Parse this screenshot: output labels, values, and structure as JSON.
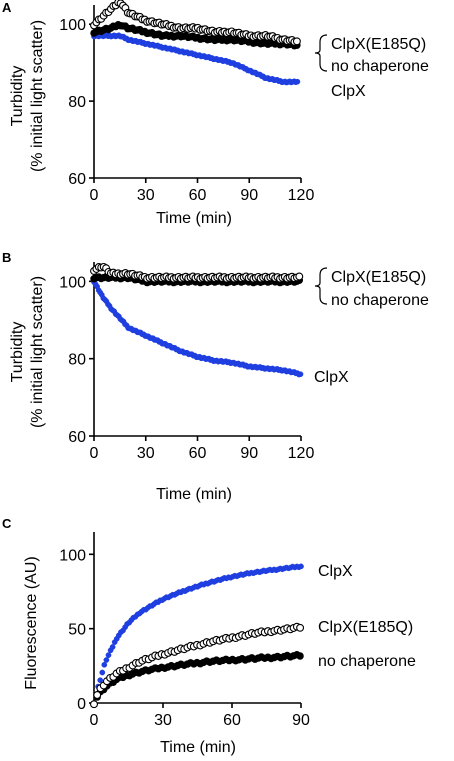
{
  "colors": {
    "clpx": "#1f3fe0",
    "mutant_edge": "#000000",
    "mutant_fill": "#ffffff",
    "nochap": "#000000",
    "axis": "#000000"
  },
  "chart_data": [
    {
      "panel": "A",
      "type": "scatter",
      "xlabel": "Time (min)",
      "ylabel": [
        "Turbidity",
        "(% initial light scatter)"
      ],
      "xlim": [
        0,
        120
      ],
      "ylim": [
        60,
        105
      ],
      "xticks": [
        0,
        30,
        60,
        90,
        120
      ],
      "yticks": [
        60,
        80,
        100
      ],
      "x": [
        0,
        10,
        15,
        20,
        30,
        40,
        50,
        60,
        70,
        80,
        90,
        100,
        110,
        118
      ],
      "series": [
        {
          "name": "ClpX(E185Q)",
          "style": "open",
          "values": [
            100,
            104,
            106,
            103,
            101,
            100,
            99,
            99,
            98,
            98,
            97,
            97,
            96,
            95.5
          ]
        },
        {
          "name": "no chaperone",
          "style": "filled",
          "values": [
            98,
            99,
            100,
            99,
            98,
            97,
            97,
            96.5,
            96,
            96,
            95.5,
            95,
            95,
            94.5
          ]
        },
        {
          "name": "ClpX",
          "style": "blue",
          "values": [
            97,
            97,
            97,
            96,
            95,
            94,
            93,
            92,
            91,
            90,
            88,
            86,
            85,
            85
          ]
        }
      ],
      "legend_labels": [
        "ClpX(E185Q)",
        "no chaperone",
        "ClpX"
      ]
    },
    {
      "panel": "B",
      "type": "scatter",
      "xlabel": "Time (min)",
      "ylabel": [
        "Turbidity",
        "(% initial light scatter)"
      ],
      "xlim": [
        0,
        120
      ],
      "ylim": [
        60,
        105
      ],
      "xticks": [
        0,
        30,
        60,
        90,
        120
      ],
      "yticks": [
        60,
        80,
        100
      ],
      "x": [
        0,
        5,
        10,
        20,
        30,
        40,
        50,
        60,
        70,
        80,
        90,
        100,
        110,
        120
      ],
      "series": [
        {
          "name": "ClpX(E185Q)",
          "style": "open",
          "values": [
            103,
            104,
            102,
            102,
            101,
            101,
            101,
            101,
            101,
            101,
            101,
            101,
            101,
            101
          ]
        },
        {
          "name": "no chaperone",
          "style": "filled",
          "values": [
            101,
            101,
            101,
            101,
            100,
            100,
            100,
            100,
            100,
            100,
            100,
            100,
            100,
            100
          ]
        },
        {
          "name": "ClpX",
          "style": "blue",
          "values": [
            100,
            96,
            93,
            88,
            86,
            84,
            82,
            80.5,
            79.5,
            79,
            78,
            77.5,
            77,
            76
          ]
        }
      ],
      "legend_labels": [
        "ClpX(E185Q)",
        "no chaperone",
        "ClpX"
      ]
    },
    {
      "panel": "C",
      "type": "scatter",
      "xlabel": "Time (min)",
      "ylabel": [
        "Fluorescence (AU)"
      ],
      "xlim": [
        0,
        90
      ],
      "ylim": [
        0,
        115
      ],
      "xticks": [
        0,
        30,
        60,
        90
      ],
      "yticks": [
        0,
        50,
        100
      ],
      "x": [
        0,
        2,
        5,
        10,
        15,
        20,
        30,
        40,
        50,
        60,
        70,
        80,
        90
      ],
      "series": [
        {
          "name": "ClpX",
          "style": "blue",
          "values": [
            0,
            12,
            28,
            44,
            54,
            61,
            70,
            76,
            81,
            85,
            88,
            90,
            92
          ]
        },
        {
          "name": "ClpX(E185Q)",
          "style": "open",
          "values": [
            0,
            8,
            14,
            20,
            24,
            28,
            33,
            37,
            41,
            44,
            47,
            49,
            51
          ]
        },
        {
          "name": "no chaperone",
          "style": "filled",
          "values": [
            0,
            6,
            11,
            16,
            19,
            21,
            24,
            26,
            28,
            29,
            30,
            31,
            32
          ]
        }
      ],
      "legend_labels": [
        "ClpX",
        "ClpX(E185Q)",
        "no chaperone"
      ]
    }
  ]
}
